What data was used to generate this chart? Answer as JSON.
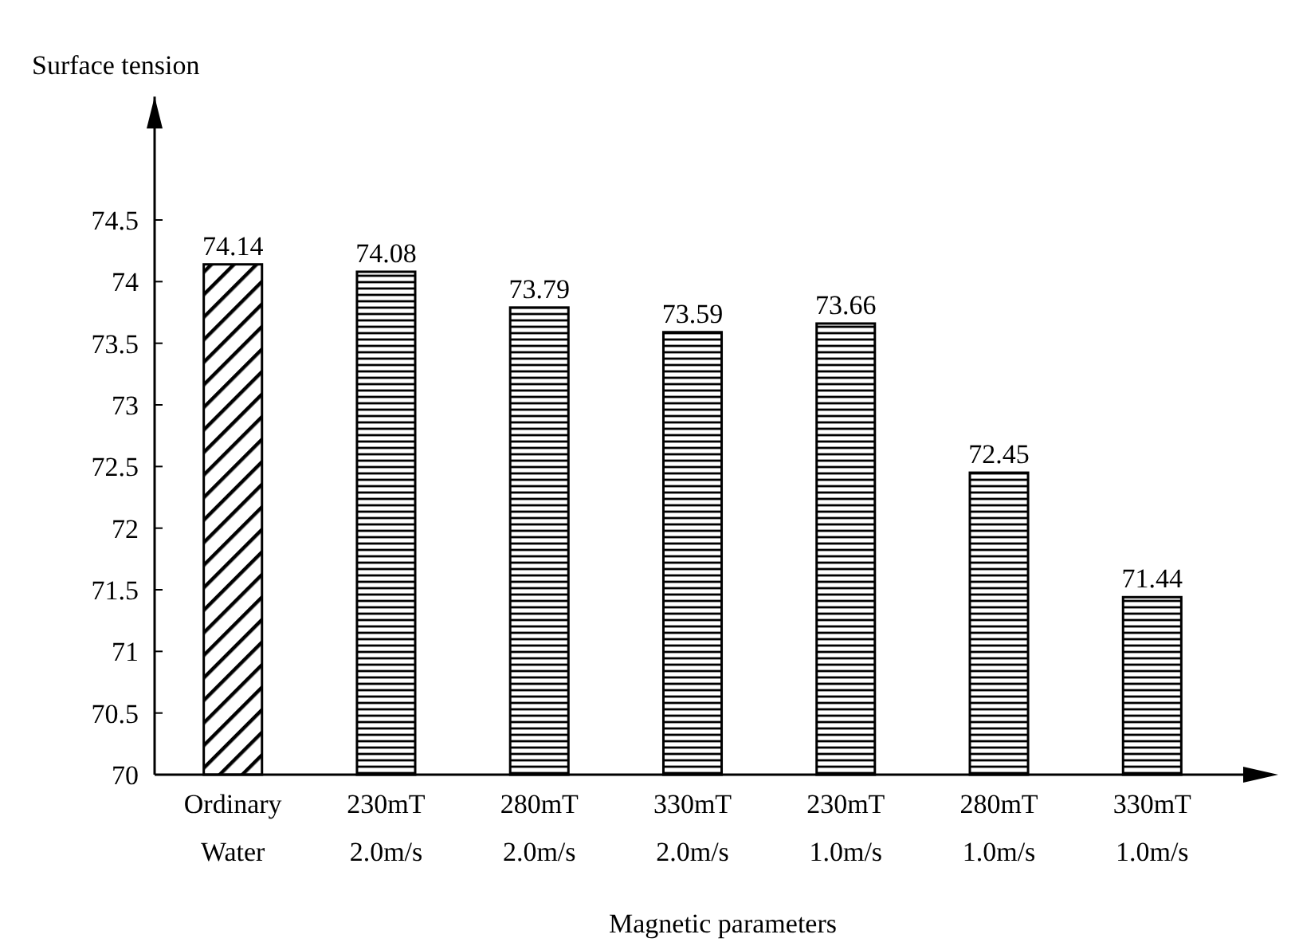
{
  "chart_data": {
    "type": "bar",
    "xlabel": "Magnetic parameters",
    "ylabel": "Surface tension",
    "categories": [
      "Ordinary Water",
      "230mT 2.0m/s",
      "280mT 2.0m/s",
      "330mT 2.0m/s",
      "230mT 1.0m/s",
      "280mT 1.0m/s",
      "330mT 1.0m/s"
    ],
    "values": [
      74.14,
      74.08,
      73.79,
      73.59,
      73.66,
      72.45,
      71.44
    ],
    "color": "#000000",
    "ylim": [
      70,
      75.5
    ],
    "yticks": [
      70,
      70.5,
      71,
      71.5,
      72,
      72.5,
      73,
      73.5,
      74,
      74.5
    ],
    "data_labels": true
  }
}
